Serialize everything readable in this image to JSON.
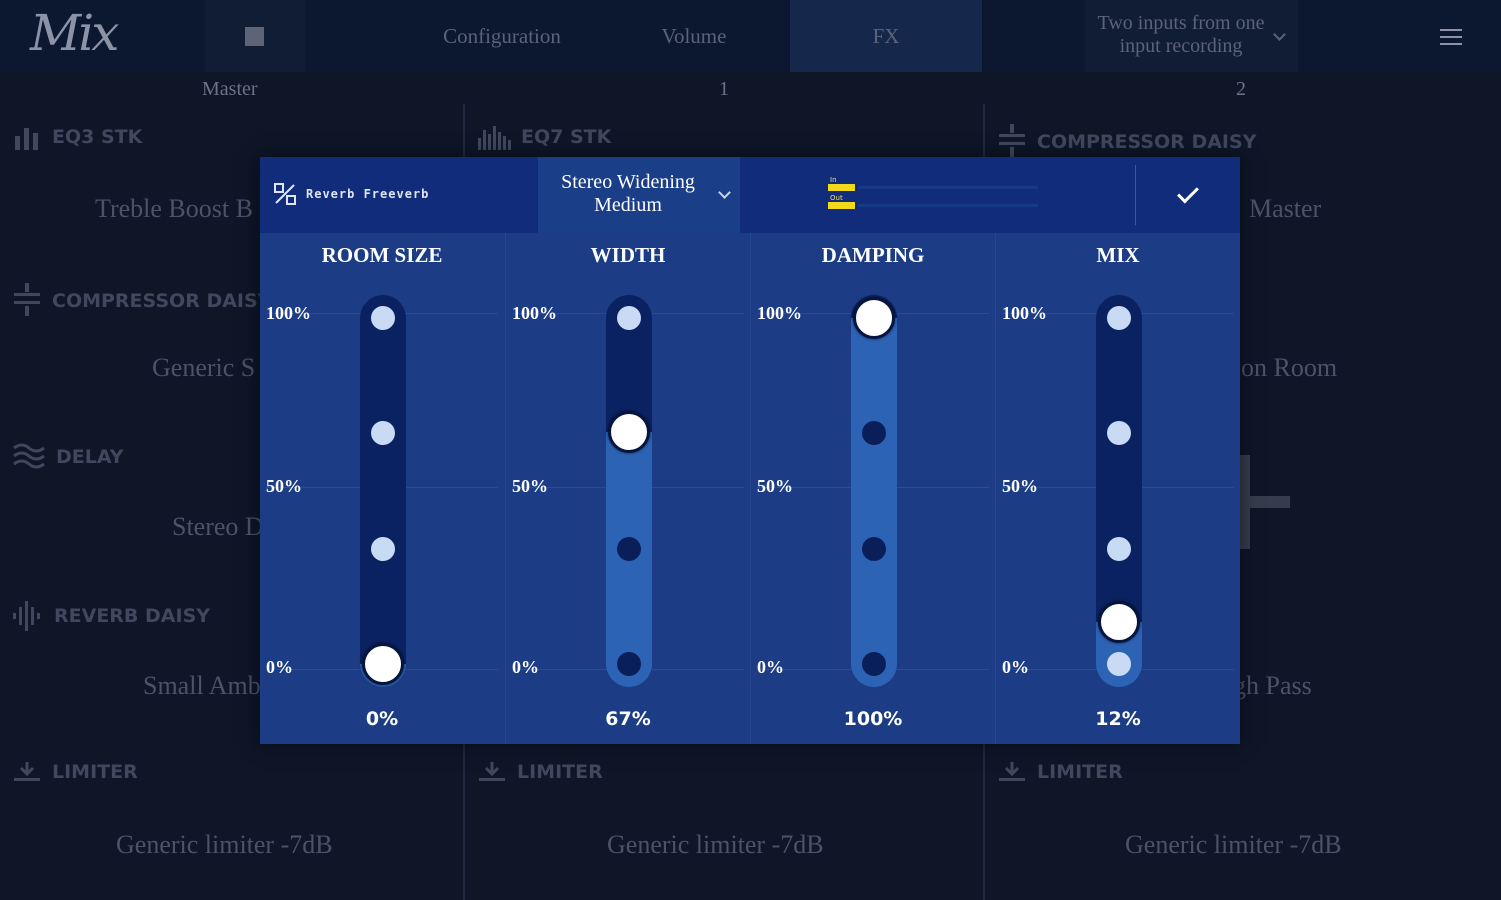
{
  "app": {
    "logo": "Mix"
  },
  "topbar": {
    "tabs": [
      "Configuration",
      "Volume",
      "FX"
    ],
    "active_tab": "FX",
    "input_mode": "Two inputs from one input recording"
  },
  "channels": [
    "Master",
    "1",
    "2"
  ],
  "columns": [
    {
      "slots": [
        {
          "type": "EQ3 STK",
          "icon": "eq3-bars-icon",
          "preset": "Treble Boost B"
        },
        {
          "type": "COMPRESSOR DAISY",
          "icon": "compressor-icon",
          "preset": "Generic S"
        },
        {
          "type": "DELAY",
          "icon": "delay-waves-icon",
          "preset": "Stereo D"
        },
        {
          "type": "REVERB DAISY",
          "icon": "reverb-waveform-icon",
          "preset": "Small Amb"
        },
        {
          "type": "LIMITER",
          "icon": "limiter-icon",
          "preset": "Generic limiter -7dB"
        }
      ]
    },
    {
      "slots": [
        {
          "type": "EQ7 STK",
          "icon": "eq7-bars-icon",
          "preset": ""
        },
        {
          "type": "LIMITER",
          "icon": "limiter-icon",
          "preset": "Generic limiter -7dB"
        }
      ]
    },
    {
      "slots": [
        {
          "type": "COMPRESSOR DAISY",
          "icon": "compressor-icon",
          "preset": "Master"
        },
        {
          "type": "",
          "icon": "",
          "preset": "on Room"
        },
        {
          "type": "",
          "icon": "",
          "preset": "gh Pass"
        },
        {
          "type": "LIMITER",
          "icon": "limiter-icon",
          "preset": "Generic limiter -7dB"
        }
      ]
    }
  ],
  "modal": {
    "effect_name": "Reverb Freeverb",
    "preset": "Stereo Widening Medium",
    "meter": {
      "labels": [
        "In",
        "Out"
      ],
      "in_level": 0.13,
      "out_level": 0.13
    },
    "scale_labels": [
      "100%",
      "50%",
      "0%"
    ],
    "params": [
      {
        "name": "ROOM SIZE",
        "value_text": "0%",
        "value": 0
      },
      {
        "name": "WIDTH",
        "value_text": "67%",
        "value": 0.67
      },
      {
        "name": "DAMPING",
        "value_text": "100%",
        "value": 1.0
      },
      {
        "name": "MIX",
        "value_text": "12%",
        "value": 0.12
      }
    ]
  },
  "colors": {
    "accent": "#1c3d85",
    "header": "#112c7a",
    "fill": "#2d63b5",
    "meter": "#f2da1b"
  }
}
